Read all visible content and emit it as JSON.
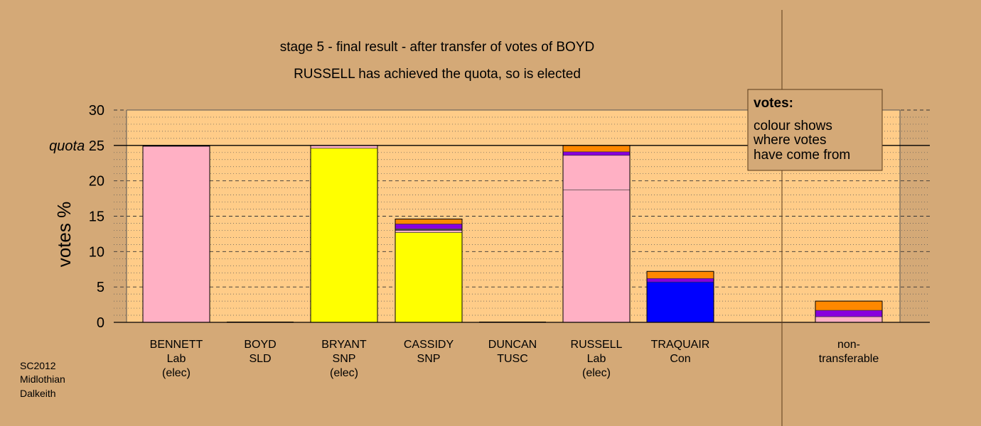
{
  "chart_data": {
    "type": "bar",
    "stacked": true,
    "title": "stage 5 - final result - after transfer of votes of BOYD",
    "subtitle": "RUSSELL has achieved the quota, so is elected",
    "ylabel": "votes %",
    "ylim": [
      0,
      30
    ],
    "yticks": [
      "0",
      "5",
      "10",
      "15",
      "20",
      "quota 25",
      "30"
    ],
    "quota_value": 25,
    "quota_label": "quota",
    "grid": true,
    "legend": {
      "position": "top-right",
      "title": "votes:",
      "lines": [
        "colour shows",
        "where votes",
        "have come from"
      ]
    },
    "colors": {
      "background": "#d4a977",
      "plot_area": "#ffcc88",
      "Lab": "#ffb0c4",
      "SNP": "#ffff00",
      "Con": "#0000ff",
      "SLD": "#8800dd",
      "TUSC": "#ff8800"
    },
    "categories": [
      {
        "name": "BENNETT",
        "party": "Lab",
        "status": "(elec)"
      },
      {
        "name": "BOYD",
        "party": "SLD",
        "status": ""
      },
      {
        "name": "BRYANT",
        "party": "SNP",
        "status": "(elec)"
      },
      {
        "name": "CASSIDY",
        "party": "SNP",
        "status": ""
      },
      {
        "name": "DUNCAN",
        "party": "TUSC",
        "status": ""
      },
      {
        "name": "RUSSELL",
        "party": "Lab",
        "status": "(elec)"
      },
      {
        "name": "TRAQUAIR",
        "party": "Con",
        "status": ""
      },
      {
        "name": "non-",
        "party": "transferable",
        "status": ""
      }
    ],
    "bars": [
      [
        {
          "from": "Lab",
          "value": 24.9
        }
      ],
      [],
      [
        {
          "from": "SNP",
          "value": 24.6
        },
        {
          "from": "Lab",
          "value": 0.4
        }
      ],
      [
        {
          "from": "SNP",
          "value": 12.7
        },
        {
          "from": "Lab",
          "value": 0.3
        },
        {
          "from": "Con",
          "value": 0.1
        },
        {
          "from": "SNP",
          "value": 0.1
        },
        {
          "from": "SLD",
          "value": 0.7
        },
        {
          "from": "TUSC",
          "value": 0.7
        }
      ],
      [],
      [
        {
          "from": "Lab",
          "value": 18.7
        },
        {
          "from": "Lab",
          "value": 4.9
        },
        {
          "from": "SLD",
          "value": 0.5
        },
        {
          "from": "TUSC",
          "value": 0.9
        }
      ],
      [
        {
          "from": "Con",
          "value": 5.7
        },
        {
          "from": "SLD",
          "value": 0.5
        },
        {
          "from": "TUSC",
          "value": 1.0
        }
      ],
      [
        {
          "from": "Lab",
          "value": 0.8
        },
        {
          "from": "SLD",
          "value": 0.9
        },
        {
          "from": "TUSC",
          "value": 1.3
        }
      ]
    ]
  },
  "footer": [
    "SC2012",
    "Midlothian",
    "Dalkeith"
  ]
}
